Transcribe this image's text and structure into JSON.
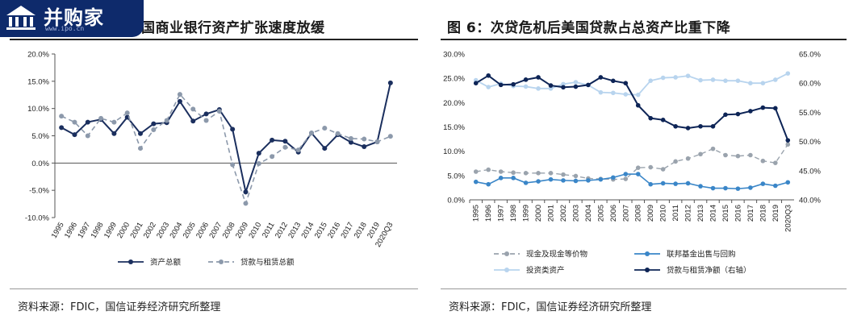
{
  "left": {
    "title": "后美国商业银行资产扩张速度放缓",
    "source": "资料来源：FDIC，国信证券经济研究所整理",
    "chart_data": {
      "type": "line",
      "categories": [
        "1995",
        "1996",
        "1997",
        "1998",
        "1999",
        "2000",
        "2001",
        "2002",
        "2003",
        "2004",
        "2005",
        "2006",
        "2007",
        "2008",
        "2009",
        "2010",
        "2011",
        "2012",
        "2013",
        "2014",
        "2015",
        "2016",
        "2017",
        "2018",
        "2019",
        "2020Q3"
      ],
      "ylim": [
        -10,
        20
      ],
      "yticks": [
        "-10.0%",
        "-5.0%",
        "0.0%",
        "5.0%",
        "10.0%",
        "15.0%",
        "20.0%"
      ],
      "series": [
        {
          "name": "资产总额",
          "style": "solid",
          "color": "#1b2f5e",
          "values": [
            6.5,
            5.2,
            7.5,
            8.0,
            5.4,
            8.4,
            5.4,
            7.2,
            7.4,
            11.3,
            7.7,
            9.0,
            9.8,
            6.2,
            -5.3,
            1.8,
            4.2,
            4.0,
            2.0,
            5.5,
            2.7,
            5.2,
            3.8,
            3.0,
            3.9,
            14.7
          ]
        },
        {
          "name": "贷款与租赁总额",
          "style": "dashed",
          "color": "#8c99ab",
          "values": [
            8.6,
            7.5,
            5.0,
            8.2,
            7.5,
            9.2,
            2.7,
            6.1,
            7.8,
            12.6,
            9.9,
            7.8,
            9.5,
            -0.3,
            -7.4,
            -0.1,
            1.2,
            2.9,
            2.4,
            5.5,
            6.4,
            5.4,
            4.5,
            4.4,
            3.9,
            4.9
          ]
        }
      ]
    }
  },
  "right": {
    "title": "图 6：次贷危机后美国贷款占总资产比重下降",
    "source": "资料来源：FDIC，国信证券经济研究所整理",
    "chart_data": {
      "type": "line",
      "categories": [
        "1995",
        "1996",
        "1997",
        "1998",
        "1999",
        "2000",
        "2001",
        "2002",
        "2003",
        "2004",
        "2005",
        "2006",
        "2007",
        "2008",
        "2009",
        "2010",
        "2011",
        "2012",
        "2013",
        "2014",
        "2015",
        "2016",
        "2017",
        "2018",
        "2019",
        "2020Q3"
      ],
      "ylim_left": [
        0,
        30
      ],
      "yticks_left": [
        "0.0%",
        "5.0%",
        "10.0%",
        "15.0%",
        "20.0%",
        "25.0%",
        "30.0%"
      ],
      "ylim_right": [
        40,
        65
      ],
      "yticks_right": [
        "40.0%",
        "45.0%",
        "50.0%",
        "55.0%",
        "60.0%",
        "65.0%"
      ],
      "series": [
        {
          "name": "现金及现金等价物",
          "axis": "left",
          "style": "dashed",
          "color": "#9aa3ad",
          "marker": true,
          "values": [
            5.8,
            6.2,
            5.8,
            5.6,
            5.5,
            5.5,
            5.5,
            5.2,
            4.9,
            4.4,
            4.3,
            4.2,
            4.3,
            6.6,
            6.7,
            6.3,
            7.9,
            8.5,
            9.4,
            10.5,
            9.2,
            9.0,
            9.2,
            8.0,
            7.6,
            11.4
          ]
        },
        {
          "name": "联邦基金出售与回购",
          "axis": "left",
          "style": "solid",
          "color": "#3a86c8",
          "marker": true,
          "values": [
            3.7,
            3.2,
            4.5,
            4.5,
            3.5,
            3.8,
            4.2,
            4.0,
            3.9,
            4.0,
            4.2,
            4.6,
            5.3,
            5.3,
            3.2,
            3.4,
            3.3,
            3.4,
            2.8,
            2.4,
            2.4,
            2.3,
            2.5,
            3.3,
            2.9,
            3.6
          ]
        },
        {
          "name": "投资类资产",
          "axis": "left",
          "style": "solid",
          "color": "#b8d4ee",
          "marker": true,
          "values": [
            24.6,
            23.2,
            23.9,
            23.4,
            23.3,
            22.9,
            22.9,
            23.8,
            24.2,
            23.6,
            22.1,
            22.0,
            21.7,
            21.6,
            24.5,
            25.1,
            25.2,
            25.5,
            24.6,
            24.7,
            24.5,
            24.5,
            24.0,
            24.0,
            24.7,
            26.0
          ]
        },
        {
          "name": "贷款与租赁净额（右轴）",
          "axis": "right",
          "style": "solid",
          "color": "#0d2456",
          "marker": true,
          "values": [
            60.0,
            61.3,
            59.7,
            59.8,
            60.6,
            61.0,
            59.6,
            59.3,
            59.4,
            59.7,
            61.0,
            60.4,
            60.0,
            56.2,
            54.0,
            53.7,
            52.6,
            52.3,
            52.6,
            52.6,
            54.6,
            54.7,
            55.2,
            55.8,
            55.7,
            50.2
          ]
        }
      ]
    }
  },
  "logo": {
    "text": "并购家",
    "url": "www.ipo.cn"
  }
}
